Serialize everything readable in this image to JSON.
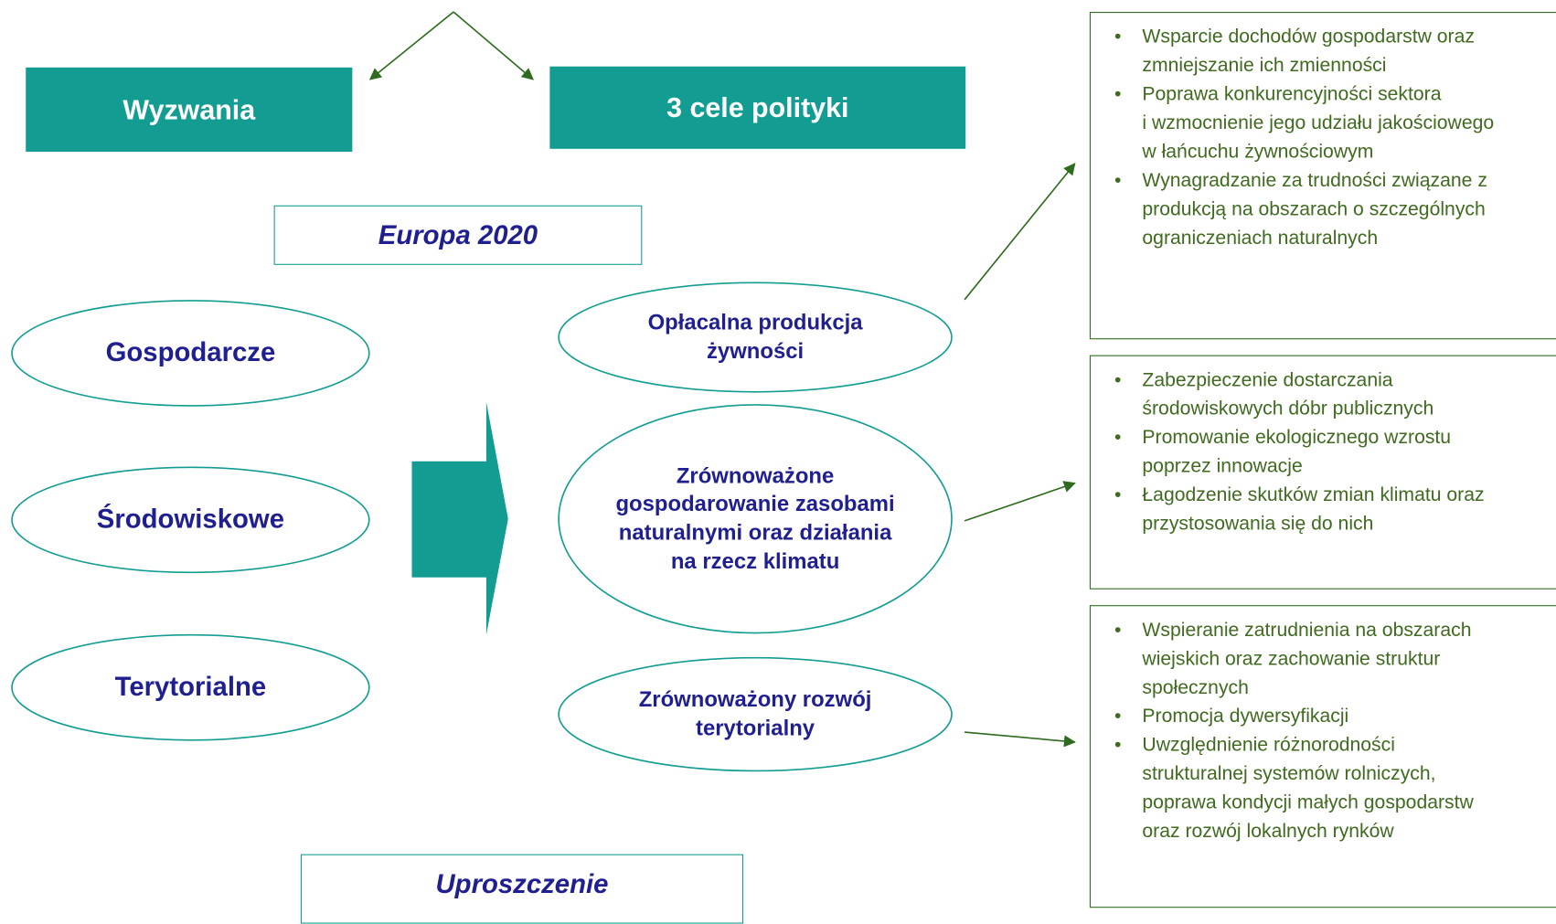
{
  "header": {
    "left": "Wyzwania",
    "right": "3 cele polityki"
  },
  "europa": "Europa 2020",
  "uproszczenie": "Uproszczenie",
  "challenges": [
    "Gospodarcze",
    "Środowiskowe",
    "Terytorialne"
  ],
  "goals": [
    {
      "lines": [
        "Opłacalna produkcja",
        "żywności"
      ],
      "items": [
        {
          "lines": [
            "Wsparcie dochodów gospodarstw oraz",
            "zmniejszanie ich zmienności"
          ]
        },
        {
          "lines": [
            "Poprawa konkurencyjności sektora",
            "i wzmocnienie jego udziału jakościowego",
            "w łańcuchu żywnościowym"
          ]
        },
        {
          "lines": [
            "Wynagradzanie za trudności związane z",
            "produkcją na obszarach o szczególnych",
            "ograniczeniach naturalnych"
          ]
        }
      ]
    },
    {
      "lines": [
        "Zrównoważone",
        "gospodarowanie zasobami",
        "naturalnymi oraz działania",
        "na rzecz klimatu"
      ],
      "items": [
        {
          "lines": [
            "Zabezpieczenie dostarczania",
            "środowiskowych dóbr publicznych"
          ]
        },
        {
          "lines": [
            "Promowanie ekologicznego wzrostu",
            "poprzez innowacje"
          ]
        },
        {
          "lines": [
            "Łagodzenie skutków zmian klimatu oraz",
            "przystosowania się do nich"
          ]
        }
      ]
    },
    {
      "lines": [
        "Zrównoważony rozwój",
        "terytorialny"
      ],
      "items": [
        {
          "lines": [
            "Wspieranie zatrudnienia na obszarach",
            "wiejskich oraz zachowanie struktur",
            "społecznych"
          ]
        },
        {
          "lines": [
            "Promocja dywersyfikacji"
          ]
        },
        {
          "lines": [
            "Uwzględnienie różnorodności",
            "strukturalnej systemów rolniczych,",
            "poprawa kondycji małych gospodarstw",
            "oraz rozwój lokalnych rynków"
          ]
        }
      ]
    }
  ]
}
